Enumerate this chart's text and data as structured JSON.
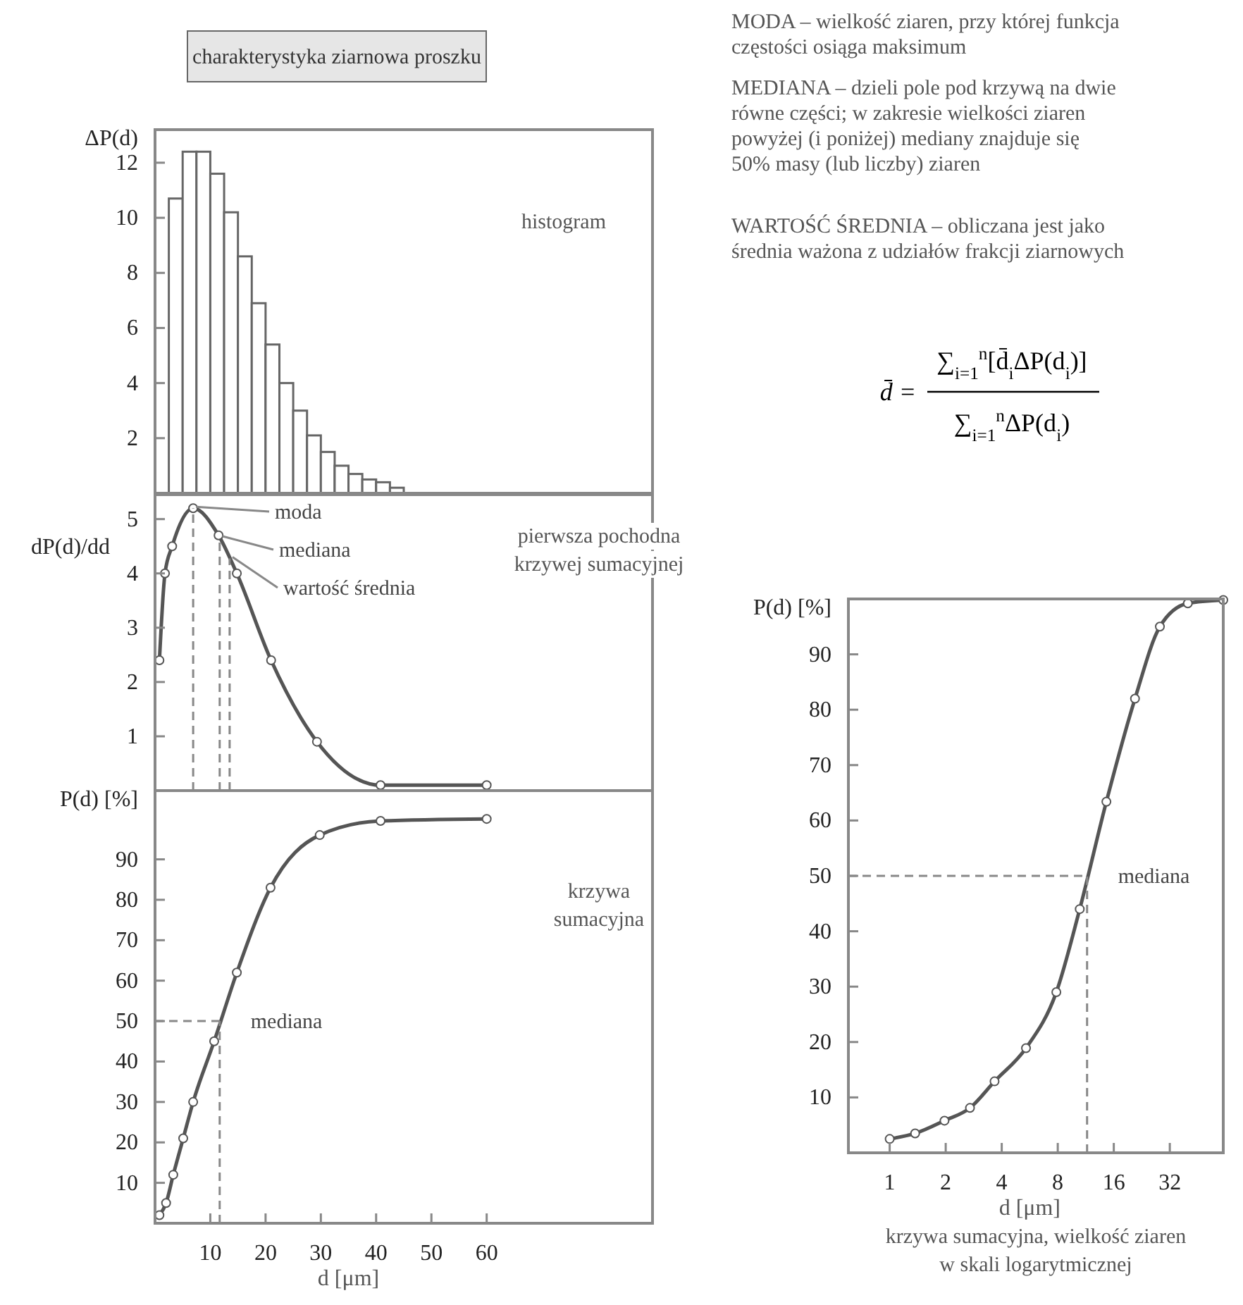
{
  "chart_data": [
    {
      "type": "histogram",
      "title": "charakterystyka ziarnowa proszku",
      "ylabel": "ΔP(d)",
      "annotations": [
        "histogram"
      ],
      "bins": [
        2.5,
        5,
        7.5,
        10,
        12.5,
        15,
        17.5,
        20,
        22.5,
        25,
        27.5,
        30,
        32.5,
        35,
        37.5,
        40,
        42.5,
        45
      ],
      "values": [
        10.7,
        12.4,
        12.4,
        11.6,
        10.2,
        8.6,
        6.9,
        5.4,
        4.0,
        3.0,
        2.1,
        1.5,
        1.0,
        0.7,
        0.5,
        0.4,
        0.2
      ],
      "color": "#ffffff",
      "xlim": [
        0,
        90
      ],
      "ylim": [
        0,
        13.2
      ],
      "yticks": [
        2,
        4,
        6,
        8,
        10,
        12
      ],
      "tick_labels": "y"
    },
    {
      "type": "line",
      "ylabel": "dP(d)/dd",
      "annotations": [
        "pierwsza pochodna\nkrzywej sumacyjnej"
      ],
      "x": [
        0.8,
        1.8,
        3.1,
        6.9,
        11.5,
        14.8,
        21,
        29.3,
        40.8,
        60
      ],
      "series": [
        {
          "color": "#555555",
          "values": [
            2.4,
            4.0,
            4.5,
            5.2,
            4.7,
            4.0,
            2.4,
            0.9,
            0.1,
            0.1
          ]
        }
      ],
      "marker": "circle",
      "xlim": [
        0,
        90
      ],
      "ylim": [
        0,
        5.45
      ],
      "yticks": [
        1,
        2,
        3,
        4,
        5
      ],
      "tick_labels": "y",
      "ref_lines": [
        {
          "axis": "x",
          "value": 6.9,
          "label": "moda"
        },
        {
          "axis": "x",
          "value": 11.7,
          "label": "mediana"
        },
        {
          "axis": "x",
          "value": 13.5,
          "label": "wartość średnia"
        }
      ]
    },
    {
      "type": "line",
      "xlabel": "d [μm]",
      "ylabel": "P(d) [%]",
      "annotations": [
        "krzywa\nsumacyjna"
      ],
      "x": [
        0.8,
        2,
        3.3,
        5.1,
        6.9,
        10.7,
        14.8,
        20.9,
        29.8,
        40.8,
        60
      ],
      "series": [
        {
          "color": "#555555",
          "values": [
            2,
            5,
            12,
            21,
            30,
            45,
            62,
            83,
            96,
            99.5,
            100
          ]
        }
      ],
      "marker": "circle",
      "xlim": [
        0,
        90
      ],
      "xticks": [
        10,
        20,
        30,
        40,
        50,
        60
      ],
      "ylim": [
        0,
        107
      ],
      "yticks": [
        10,
        20,
        30,
        40,
        50,
        60,
        70,
        80,
        90
      ],
      "ref_lines": [
        {
          "axis": "y",
          "value": 50,
          "label": "mediana"
        },
        {
          "axis": "x",
          "value": 11.7,
          "label": null
        }
      ]
    },
    {
      "type": "line",
      "xlabel": "d [μm]",
      "ylabel": "P(d) [%]",
      "annotations": [
        "krzywa sumacyjna, wielkość ziaren\nw skali logarytmicznej"
      ],
      "x": [
        1,
        1.37,
        1.97,
        2.7,
        3.66,
        5.4,
        7.86,
        10.5,
        14.6,
        20.8,
        28.3,
        40,
        62
      ],
      "series": [
        {
          "color": "#555555",
          "values": [
            2.5,
            3.5,
            5.8,
            8.1,
            12.9,
            18.9,
            29,
            44,
            63.4,
            82,
            95,
            99.2,
            99.8
          ]
        }
      ],
      "marker": "circle",
      "log": "x",
      "xlim": [
        0.6,
        62
      ],
      "xticks": [
        1,
        2,
        4,
        8,
        16,
        32
      ],
      "ylim": [
        0,
        100
      ],
      "yticks": [
        10,
        20,
        30,
        40,
        50,
        60,
        70,
        80,
        90
      ],
      "ref_lines": [
        {
          "axis": "y",
          "value": 50,
          "label": "mediana"
        },
        {
          "axis": "x",
          "value": 11.5,
          "label": null
        }
      ]
    },
    {
      "type": "other",
      "annotations": [
        "MODA – wielkość ziaren, przy której funkcja\nczęstości osiąga maksimum",
        "MEDIANA – dzieli pole pod krzywą na dwie\nrówne części; w zakresie wielkości ziaren\npowyżej (i poniżej) mediany znajduje się\n50% masy (lub liczby) ziaren",
        "WARTOŚĆ ŚREDNIA – obliczana jest jako\nśrednia ważona z udziałów frakcji ziarnowych",
        "d̄ =",
        "∑$_{i=1}$$^{n}$[d̄$_{i}$ΔP(d$_{i}$)]",
        "∑$_{i=1}$$^{n}$ΔP(d$_{i}$)"
      ]
    }
  ]
}
